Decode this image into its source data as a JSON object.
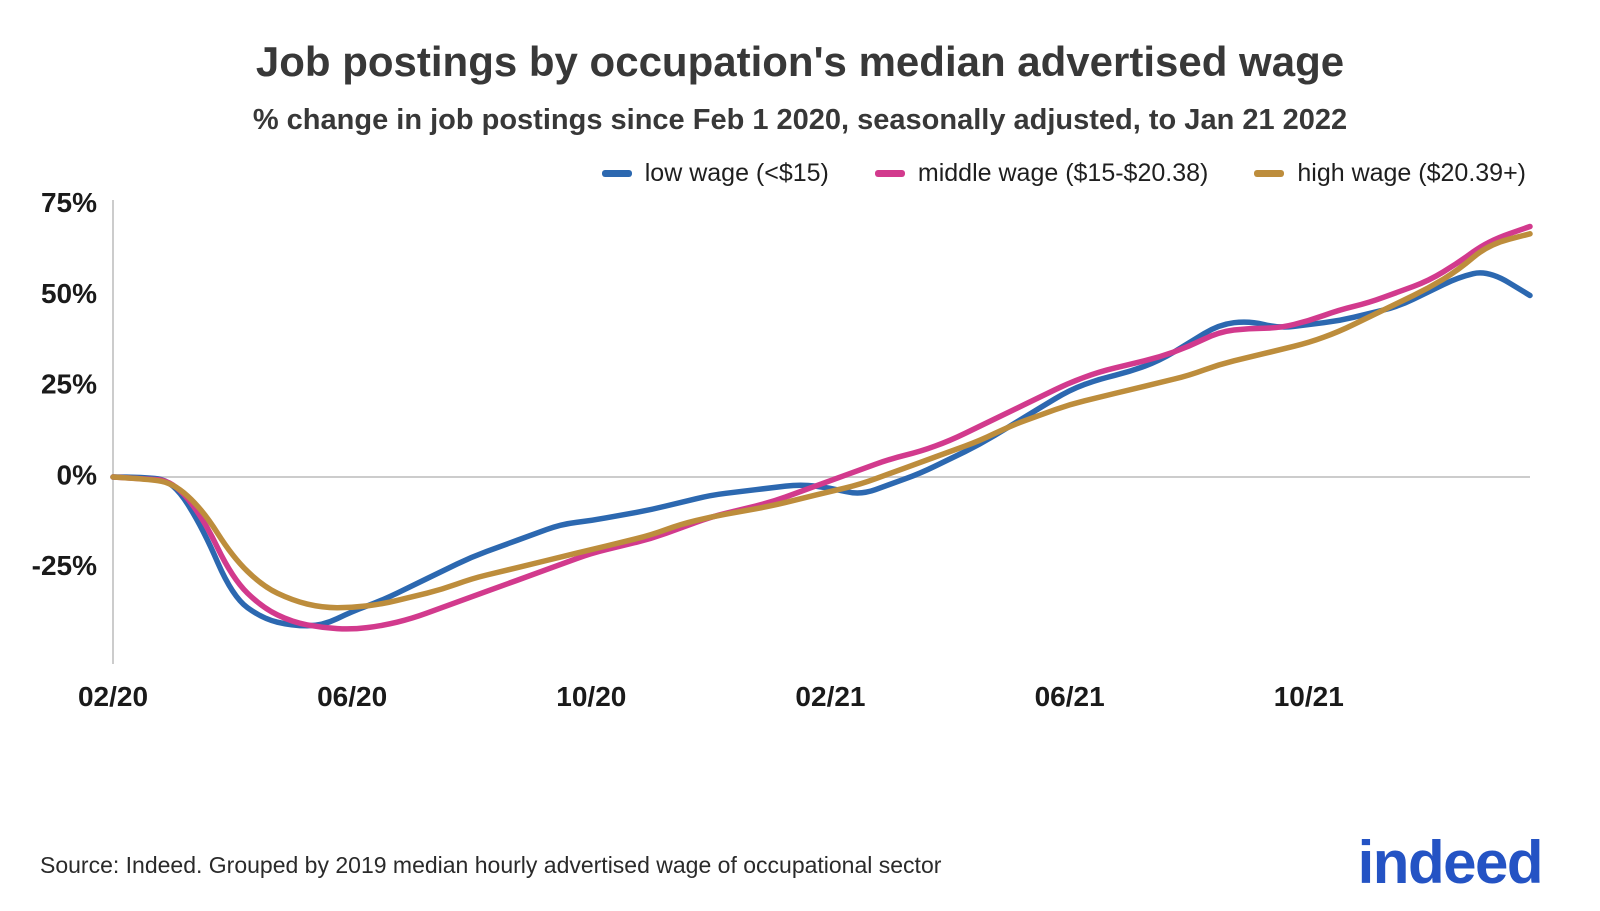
{
  "source": "Source: Indeed. Grouped by 2019 median hourly advertised wage of occupational sector",
  "logo": {
    "text": "indeed",
    "color": "#2453c4"
  },
  "axis": {
    "line_color": "#cccccc",
    "text_color": "#1a1a1a"
  },
  "chart_data": {
    "type": "line",
    "title": "Job postings by occupation's median advertised wage",
    "subtitle": "% change in job postings since Feb 1 2020, seasonally adjusted, to Jan 21 2022",
    "x_unit": "months since Feb 1 2020",
    "xlim": [
      0,
      23.7
    ],
    "ylim": [
      -45,
      78
    ],
    "grid": "zero-line-only",
    "legend_position": "top-right",
    "yticks": {
      "labels": [
        "75%",
        "50%",
        "25%",
        "0%",
        "-25%"
      ],
      "values": [
        75,
        50,
        25,
        0,
        -25
      ]
    },
    "xticks": {
      "labels": [
        "02/20",
        "06/20",
        "10/20",
        "02/21",
        "06/21",
        "10/21"
      ],
      "values": [
        0,
        4,
        8,
        12,
        16,
        20
      ]
    },
    "x": [
      0,
      0.5,
      1,
      1.5,
      2,
      2.5,
      3,
      3.5,
      4,
      4.5,
      5,
      5.5,
      6,
      6.5,
      7,
      7.5,
      8,
      8.5,
      9,
      9.5,
      10,
      10.5,
      11,
      11.5,
      12,
      12.5,
      13,
      13.5,
      14,
      14.5,
      15,
      15.5,
      16,
      16.5,
      17,
      17.5,
      18,
      18.5,
      19,
      19.5,
      20,
      20.5,
      21,
      21.5,
      22,
      22.5,
      23,
      23.7
    ],
    "series": [
      {
        "name": "low wage (<$15)",
        "color": "#2c68b0",
        "values": [
          0,
          0,
          -1,
          -14,
          -33,
          -39,
          -41,
          -41,
          -37,
          -34,
          -30,
          -26,
          -22,
          -19,
          -16,
          -13,
          -12,
          -10.5,
          -9,
          -7,
          -5,
          -4,
          -3,
          -2,
          -3,
          -5,
          -2,
          1,
          5,
          9,
          14,
          19,
          24,
          27,
          29,
          32,
          37,
          42,
          43,
          41,
          42,
          43,
          45,
          47,
          51,
          55,
          57,
          50
        ]
      },
      {
        "name": "middle wage ($15-$20.38)",
        "color": "#d23a8d",
        "values": [
          0,
          -0.5,
          -1,
          -11,
          -28,
          -36,
          -40,
          -41.5,
          -42,
          -41,
          -39,
          -36,
          -33,
          -30,
          -27,
          -24,
          -21,
          -19,
          -17,
          -14,
          -11,
          -9,
          -7,
          -4,
          -1,
          2,
          5,
          7,
          10,
          14,
          18,
          22,
          26,
          29,
          31,
          33,
          36,
          40,
          41,
          41,
          43,
          46,
          48,
          51,
          54,
          59,
          65,
          69
        ]
      },
      {
        "name": "high wage ($20.39+)",
        "color": "#bd8d3c",
        "values": [
          0,
          -0.5,
          -1.5,
          -9,
          -22,
          -30,
          -34,
          -36,
          -36,
          -35,
          -33,
          -31,
          -28,
          -26,
          -24,
          -22,
          -20,
          -18,
          -16,
          -13,
          -11,
          -9.5,
          -8,
          -6,
          -4,
          -2,
          1,
          4,
          7,
          10,
          14,
          17,
          20,
          22,
          24,
          26,
          28,
          31,
          33,
          35,
          37,
          40,
          44,
          48,
          52,
          57,
          64,
          67
        ]
      }
    ]
  }
}
